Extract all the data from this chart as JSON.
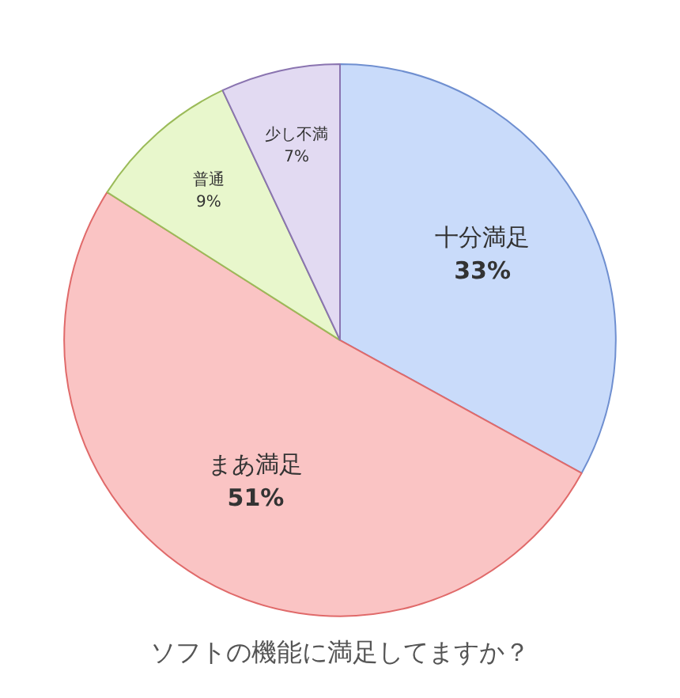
{
  "chart_data": {
    "type": "pie",
    "title": "ソフトの機能に満足してますか？",
    "categories": [
      "十分満足",
      "まあ満足",
      "普通",
      "少し不満"
    ],
    "values": [
      33,
      51,
      9,
      7
    ],
    "colors": [
      "#c9dbfa",
      "#fac4c4",
      "#e8f7cc",
      "#e2daf2"
    ],
    "value_labels": [
      "33%",
      "51%",
      "9%",
      "7%"
    ],
    "legend": false
  }
}
